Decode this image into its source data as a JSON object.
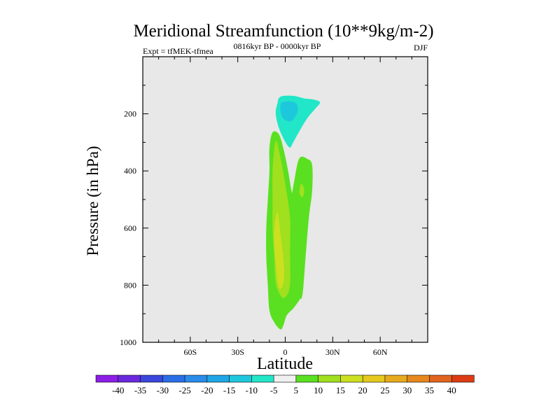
{
  "chart_data": {
    "type": "contour",
    "title": "Meridional Streamfunction (10**9kg/m-2)",
    "subtitle": "0816kyr BP - 0000kyr BP",
    "left_label": "Expt = tfMEK-tfmea",
    "right_label": "DJF",
    "xlabel": "Latitude",
    "ylabel": "Pressure (in hPa)",
    "xlim": [
      -90,
      90
    ],
    "ylim": [
      1000,
      0
    ],
    "x_ticks": [
      -60,
      -30,
      0,
      30,
      60
    ],
    "x_tick_labels": [
      "60S",
      "30S",
      "0",
      "30N",
      "60N"
    ],
    "y_ticks": [
      200,
      400,
      600,
      800,
      1000
    ],
    "y_tick_labels": [
      "200",
      "400",
      "600",
      "800",
      "1000"
    ],
    "background_color": "#e8e8e8",
    "colorbar": {
      "labels": [
        "-40",
        "-35",
        "-30",
        "-25",
        "-20",
        "-15",
        "-10",
        "-5",
        "5",
        "10",
        "15",
        "20",
        "25",
        "30",
        "35",
        "40"
      ],
      "colors": [
        "#8c1ee6",
        "#6a28dc",
        "#3a46dc",
        "#2a6ee6",
        "#2a8ce8",
        "#20a6e6",
        "#1ec8dc",
        "#22e6c8",
        "#f0f0f0",
        "#5ae020",
        "#a0e01e",
        "#cce020",
        "#e6c81e",
        "#e6aa1e",
        "#e6881e",
        "#e0641e",
        "#dc3c14"
      ]
    },
    "features": [
      {
        "name": "upper-cyan-cell",
        "level_color": "#22e6c8",
        "points": [
          [
            -3,
            140
          ],
          [
            5,
            137
          ],
          [
            12,
            146
          ],
          [
            18,
            150
          ],
          [
            22,
            160
          ],
          [
            19,
            182
          ],
          [
            14,
            215
          ],
          [
            9,
            260
          ],
          [
            5,
            300
          ],
          [
            3,
            318
          ],
          [
            0,
            298
          ],
          [
            -4,
            250
          ],
          [
            -6,
            200
          ],
          [
            -5,
            165
          ]
        ]
      },
      {
        "name": "upper-cyan-core",
        "level_color": "#1ec8dc",
        "points": [
          [
            -2,
            160
          ],
          [
            6,
            160
          ],
          [
            8,
            188
          ],
          [
            4,
            225
          ],
          [
            -1,
            218
          ],
          [
            -3,
            188
          ]
        ]
      },
      {
        "name": "lower-green-band",
        "level_color": "#5ae020",
        "points": [
          [
            -8,
            265
          ],
          [
            -4,
            272
          ],
          [
            -1,
            325
          ],
          [
            2,
            405
          ],
          [
            4,
            470
          ],
          [
            8,
            560
          ],
          [
            9,
            655
          ],
          [
            11,
            745
          ],
          [
            11,
            825
          ],
          [
            6,
            875
          ],
          [
            1,
            905
          ],
          [
            -1,
            938
          ],
          [
            -3,
            955
          ],
          [
            -7,
            930
          ],
          [
            -10,
            888
          ],
          [
            -11,
            800
          ],
          [
            -12,
            700
          ],
          [
            -12,
            600
          ],
          [
            -11,
            500
          ],
          [
            -10,
            400
          ],
          [
            -10,
            320
          ]
        ]
      },
      {
        "name": "right-green-column",
        "level_color": "#5ae020",
        "points": [
          [
            9,
            355
          ],
          [
            14,
            358
          ],
          [
            17,
            380
          ],
          [
            17,
            470
          ],
          [
            15,
            560
          ],
          [
            13,
            690
          ],
          [
            11,
            828
          ],
          [
            9,
            843
          ],
          [
            6,
            780
          ],
          [
            6,
            600
          ],
          [
            4,
            510
          ],
          [
            6,
            425
          ]
        ]
      },
      {
        "name": "lower-lime-band",
        "level_color": "#a0e01e",
        "points": [
          [
            -6,
            295
          ],
          [
            -3,
            355
          ],
          [
            0,
            445
          ],
          [
            3,
            565
          ],
          [
            3,
            680
          ],
          [
            3,
            800
          ],
          [
            0,
            842
          ],
          [
            -3,
            836
          ],
          [
            -6,
            790
          ],
          [
            -7,
            700
          ],
          [
            -8,
            600
          ],
          [
            -8,
            500
          ],
          [
            -8,
            400
          ]
        ]
      },
      {
        "name": "right-lime-spot",
        "level_color": "#a0e01e",
        "points": [
          [
            10,
            445
          ],
          [
            12,
            465
          ],
          [
            11,
            492
          ],
          [
            9,
            478
          ]
        ]
      },
      {
        "name": "lower-yellow-core",
        "level_color": "#cce020",
        "points": [
          [
            -5,
            545
          ],
          [
            -3,
            622
          ],
          [
            -1,
            720
          ],
          [
            -1,
            790
          ],
          [
            -4,
            810
          ],
          [
            -6,
            720
          ],
          [
            -7,
            620
          ]
        ]
      }
    ]
  }
}
